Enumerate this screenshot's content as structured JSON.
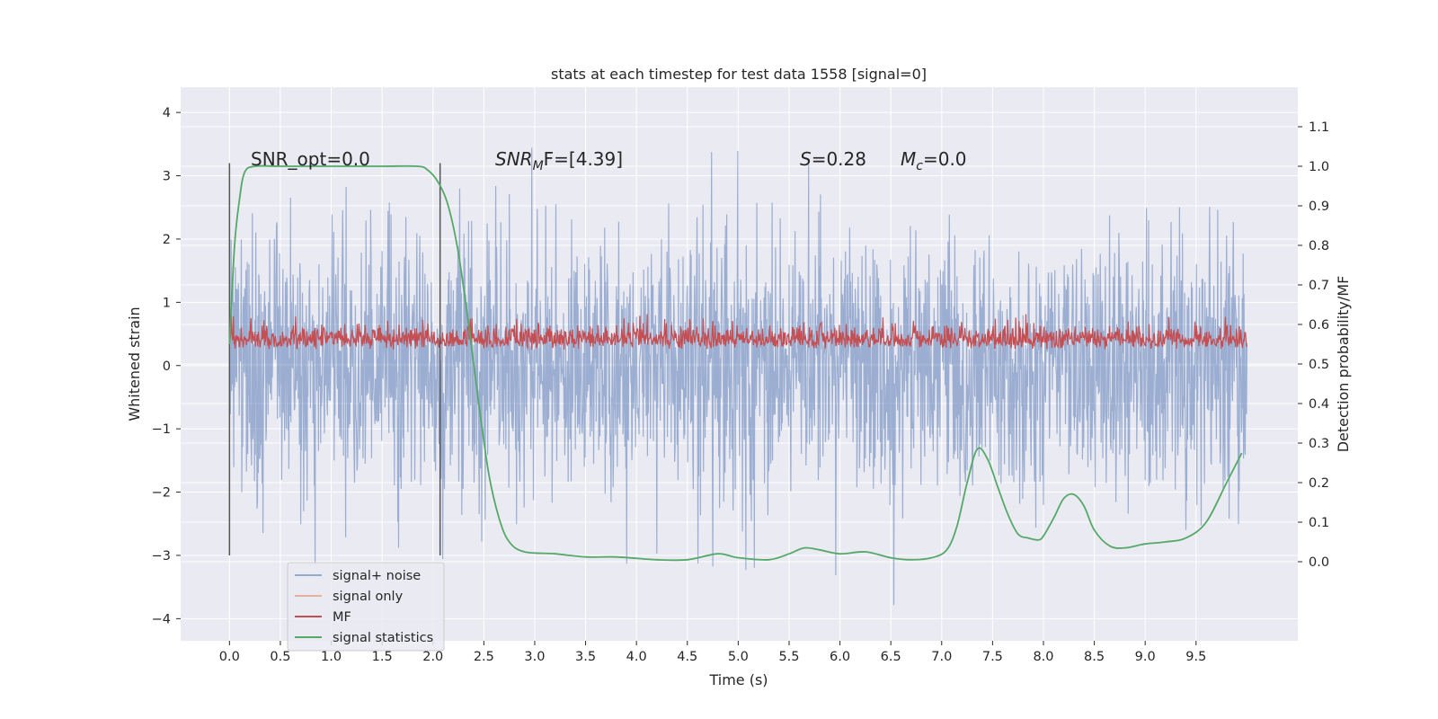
{
  "chart_data": {
    "type": "line",
    "title": "stats at each timestep for test data 1558 [signal=0]",
    "xlabel": "Time (s)",
    "ylabel": "Whitened strain",
    "y2label": "Detection probability/MF",
    "xlim": [
      -0.48,
      10.5
    ],
    "ylim": [
      -4.35,
      4.4
    ],
    "y2lim": [
      -0.2,
      1.2
    ],
    "x_ticks": [
      0.0,
      0.5,
      1.0,
      1.5,
      2.0,
      2.5,
      3.0,
      3.5,
      4.0,
      4.5,
      5.0,
      5.5,
      6.0,
      6.5,
      7.0,
      7.5,
      8.0,
      8.5,
      9.0,
      9.5
    ],
    "x_tick_labels": [
      "0.0",
      "0.5",
      "1.0",
      "1.5",
      "2.0",
      "2.5",
      "3.0",
      "3.5",
      "4.0",
      "4.5",
      "5.0",
      "5.5",
      "6.0",
      "6.5",
      "7.0",
      "7.5",
      "8.0",
      "8.5",
      "9.0",
      "9.5"
    ],
    "y_ticks": [
      -4,
      -3,
      -2,
      -1,
      0,
      1,
      2,
      3,
      4
    ],
    "y_tick_labels": [
      "−4",
      "−3",
      "−2",
      "−1",
      "0",
      "1",
      "2",
      "3",
      "4"
    ],
    "y2_ticks": [
      0.0,
      0.1,
      0.2,
      0.3,
      0.4,
      0.5,
      0.6,
      0.7,
      0.8,
      0.9,
      1.0,
      1.1
    ],
    "y2_tick_labels": [
      "0.0",
      "0.1",
      "0.2",
      "0.3",
      "0.4",
      "0.5",
      "0.6",
      "0.7",
      "0.8",
      "0.9",
      "1.0",
      "1.1"
    ],
    "grid": true,
    "legend_position": "lower-left",
    "annotations": {
      "snr_opt": "SNR_opt=0.0",
      "snr_mf_main": "SNR",
      "snr_mf_sub": "M",
      "snr_mf_tail": "F=[4.39]",
      "s_main": "S",
      "s_tail": "=0.28",
      "mc_main": "M",
      "mc_sub": "c",
      "mc_tail": "=0.0"
    },
    "vertical_lines_x": [
      0.0,
      2.07
    ],
    "vertical_lines_ylim": [
      -3.0,
      3.2
    ],
    "series": [
      {
        "name": "signal+ noise",
        "color": "#4c72b0",
        "axis": "left",
        "style": "noise band",
        "x_range": [
          0.0,
          10.0
        ],
        "typical_range": [
          -2.5,
          2.5
        ],
        "extremes": [
          -3.9,
          4.05
        ]
      },
      {
        "name": "signal only",
        "color": "#dd8452",
        "axis": "left",
        "values": [
          0.0
        ]
      },
      {
        "name": "MF",
        "color": "#c44e52",
        "axis": "right",
        "style": "noise band",
        "x_range": [
          0.0,
          10.0
        ],
        "typical_range": [
          0.52,
          0.59
        ],
        "extremes": [
          0.5,
          0.65
        ]
      },
      {
        "name": "signal statistics",
        "color": "#55a868",
        "axis": "right",
        "x": [
          0.0,
          0.05,
          0.1,
          0.15,
          0.25,
          0.5,
          1.0,
          1.5,
          1.85,
          1.95,
          2.05,
          2.15,
          2.25,
          2.35,
          2.45,
          2.55,
          2.65,
          2.75,
          2.9,
          3.2,
          3.5,
          3.8,
          4.2,
          4.5,
          4.8,
          5.0,
          5.3,
          5.5,
          5.65,
          5.8,
          6.0,
          6.25,
          6.5,
          6.7,
          6.9,
          7.05,
          7.15,
          7.25,
          7.35,
          7.45,
          7.55,
          7.65,
          7.75,
          7.85,
          7.95,
          8.0,
          8.1,
          8.2,
          8.3,
          8.4,
          8.5,
          8.65,
          8.8,
          9.0,
          9.2,
          9.4,
          9.6,
          9.8,
          9.95
        ],
        "y": [
          0.55,
          0.8,
          0.92,
          0.985,
          1.0,
          1.0,
          1.0,
          1.0,
          1.0,
          0.99,
          0.96,
          0.9,
          0.78,
          0.6,
          0.4,
          0.22,
          0.11,
          0.05,
          0.025,
          0.02,
          0.012,
          0.012,
          0.005,
          0.005,
          0.02,
          0.01,
          0.005,
          0.02,
          0.035,
          0.03,
          0.02,
          0.025,
          0.01,
          0.005,
          0.01,
          0.03,
          0.09,
          0.2,
          0.285,
          0.26,
          0.19,
          0.12,
          0.07,
          0.06,
          0.055,
          0.065,
          0.11,
          0.16,
          0.17,
          0.14,
          0.08,
          0.04,
          0.035,
          0.045,
          0.05,
          0.06,
          0.1,
          0.2,
          0.275
        ]
      }
    ]
  }
}
